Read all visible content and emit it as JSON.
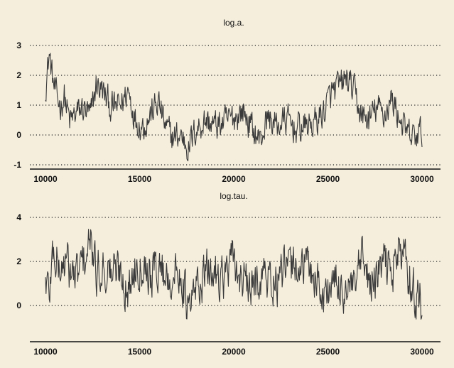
{
  "colors": {
    "background": "#f5eedd",
    "trace": "#3a3a3a",
    "axis": "#111111",
    "grid": "#222222"
  },
  "chart_data": [
    {
      "type": "line",
      "title": "log.a.",
      "xlabel": "",
      "ylabel": "",
      "xlim": [
        9500,
        30500
      ],
      "ylim": [
        -1.1,
        3.4
      ],
      "xticks": [
        10000,
        15000,
        20000,
        25000,
        30000
      ],
      "xtick_labels": [
        "10000",
        "15000",
        "20000",
        "25000",
        "30000"
      ],
      "yticks": [
        -1,
        0,
        1,
        2,
        3
      ],
      "ytick_labels": [
        "-1",
        "0",
        "1",
        "2",
        "3"
      ],
      "grid": "horizontal dotted",
      "noise": 0.45,
      "series": [
        {
          "x": [
            10000,
            10200,
            10400,
            10600,
            10800,
            11000,
            11300,
            11600,
            12000,
            12400,
            12700,
            13000,
            13500,
            14000,
            14400,
            14800,
            15200,
            15600,
            16000,
            16400,
            16800,
            17200,
            17600,
            18000,
            18500,
            19000,
            19500,
            20000,
            20500,
            21000,
            21400,
            21800,
            22300,
            22800,
            23300,
            23800,
            24300,
            24800,
            25200,
            25600,
            26000,
            26400,
            26800,
            27200,
            27600,
            28000,
            28400,
            28800,
            29200,
            29600,
            30000
          ],
          "y": [
            1.6,
            2.7,
            1.8,
            1.2,
            1.0,
            1.3,
            0.4,
            0.7,
            0.9,
            0.6,
            1.7,
            1.5,
            0.9,
            1.0,
            1.5,
            0.5,
            0.3,
            0.7,
            1.1,
            0.2,
            -0.1,
            0.0,
            -0.4,
            0.2,
            0.5,
            0.3,
            0.4,
            0.6,
            0.8,
            0.2,
            -0.2,
            0.6,
            0.3,
            0.5,
            0.2,
            0.3,
            0.4,
            0.8,
            1.4,
            1.6,
            1.9,
            1.4,
            0.6,
            0.5,
            0.9,
            0.7,
            1.2,
            0.6,
            0.0,
            -0.1,
            0.1
          ]
        }
      ]
    },
    {
      "type": "line",
      "title": "log.tau.",
      "xlabel": "",
      "ylabel": "",
      "xlim": [
        9500,
        30500
      ],
      "ylim": [
        -1.6,
        4.5
      ],
      "xticks": [
        10000,
        15000,
        20000,
        25000,
        30000
      ],
      "xtick_labels": [
        "10000",
        "15000",
        "20000",
        "25000",
        "30000"
      ],
      "yticks": [
        0,
        2,
        4
      ],
      "ytick_labels": [
        "0",
        "2",
        "4"
      ],
      "grid": "horizontal dotted",
      "noise": 0.9,
      "series": [
        {
          "x": [
            10000,
            10200,
            10400,
            10600,
            10800,
            11000,
            11300,
            11600,
            12000,
            12400,
            12700,
            13000,
            13500,
            14000,
            14400,
            14800,
            15200,
            15600,
            16000,
            16400,
            16800,
            17200,
            17600,
            18000,
            18500,
            19000,
            19500,
            20000,
            20500,
            21000,
            21400,
            21800,
            22300,
            22800,
            23300,
            23800,
            24300,
            24800,
            25200,
            25600,
            26000,
            26400,
            26800,
            27200,
            27600,
            28000,
            28400,
            28800,
            29200,
            29600,
            30000
          ],
          "y": [
            1.2,
            0.6,
            2.5,
            2.0,
            1.5,
            2.0,
            1.6,
            1.2,
            2.0,
            2.8,
            1.4,
            1.8,
            1.5,
            1.6,
            0.6,
            1.9,
            2.1,
            1.4,
            1.8,
            1.4,
            1.2,
            1.6,
            -0.4,
            0.8,
            1.4,
            1.6,
            1.3,
            2.0,
            1.0,
            0.6,
            1.5,
            1.2,
            1.0,
            1.6,
            1.9,
            1.8,
            1.4,
            0.4,
            1.0,
            0.8,
            0.7,
            0.6,
            2.0,
            1.0,
            1.2,
            2.0,
            1.6,
            2.6,
            1.8,
            0.6,
            0.0
          ]
        }
      ]
    }
  ]
}
